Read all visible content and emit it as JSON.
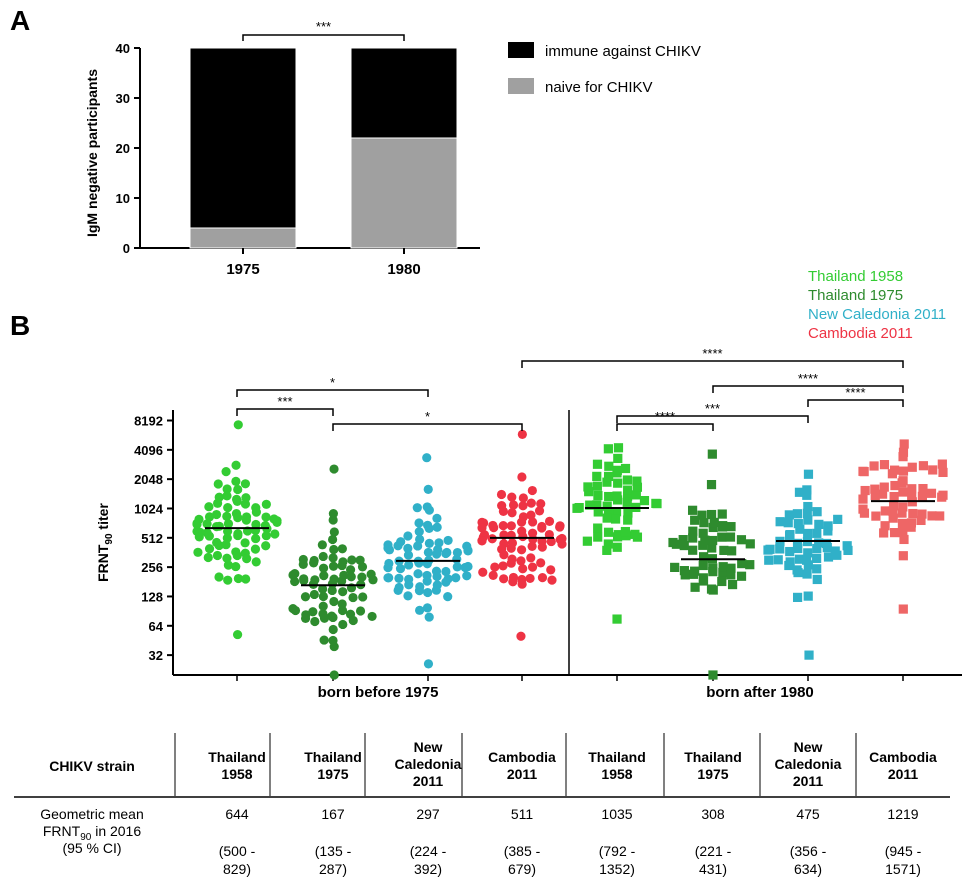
{
  "panel_a": {
    "letter": "A",
    "chart_data": {
      "type": "bar",
      "stacked": true,
      "categories": [
        "1975",
        "1980"
      ],
      "series": [
        {
          "name": "naive for CHIKV",
          "color": "#a0a0a0",
          "values": [
            4,
            22
          ]
        },
        {
          "name": "immune against CHIKV",
          "color": "#000000",
          "values": [
            36,
            18
          ]
        }
      ],
      "ylabel": "IgM negative participants",
      "ylim": [
        0,
        40
      ],
      "yticks": [
        0,
        10,
        20,
        30,
        40
      ],
      "legend_placement": "right",
      "legend": [
        {
          "label": "immune against CHIKV",
          "color": "#000000"
        },
        {
          "label": "naive for CHIKV",
          "color": "#a0a0a0"
        }
      ],
      "annotations": [
        {
          "between": [
            "1975",
            "1980"
          ],
          "text": "***"
        }
      ]
    }
  },
  "panel_b": {
    "letter": "B",
    "chart_data": {
      "type": "scatter",
      "ylabel": "FRNT",
      "ylabel_sub": "90",
      "ylabel_suffix": " titer",
      "yscale": "log2",
      "ylim": [
        20,
        10500
      ],
      "yticks": [
        32,
        64,
        128,
        256,
        512,
        1024,
        2048,
        4096,
        8192
      ],
      "groups": [
        "born before 1975",
        "born after 1980"
      ],
      "legend_placement": "top-right",
      "legend": [
        {
          "label": "Thailand 1958",
          "color": "#33cc33"
        },
        {
          "label": "Thailand 1975",
          "color": "#2e8b2e"
        },
        {
          "label": "New Caledonia 2011",
          "color": "#30b0c8"
        },
        {
          "label": "Cambodia 2011",
          "color": "#ee3344"
        }
      ],
      "series": [
        {
          "name": "Thailand 1958",
          "group": "born before 1975",
          "marker": "circle",
          "color": "#33cc33",
          "geomean": 644,
          "n": 78,
          "min": 52,
          "max": 7400
        },
        {
          "name": "Thailand 1975",
          "group": "born before 1975",
          "marker": "circle",
          "color": "#2e8b2e",
          "geomean": 167,
          "n": 72,
          "min": 20,
          "max": 2600
        },
        {
          "name": "New Caledonia 2011",
          "group": "born before 1975",
          "marker": "circle",
          "color": "#30b0c8",
          "geomean": 297,
          "n": 74,
          "min": 26,
          "max": 3400
        },
        {
          "name": "Cambodia 2011",
          "group": "born before 1975",
          "marker": "circle",
          "color": "#ee3344",
          "geomean": 511,
          "n": 76,
          "min": 50,
          "max": 5900
        },
        {
          "name": "Thailand 1958",
          "group": "born after 1980",
          "marker": "square",
          "color": "#33cc33",
          "geomean": 1035,
          "n": 56,
          "min": 75,
          "max": 4300
        },
        {
          "name": "Thailand 1975",
          "group": "born after 1980",
          "marker": "square",
          "color": "#2e8b2e",
          "geomean": 308,
          "n": 56,
          "min": 20,
          "max": 3700
        },
        {
          "name": "New Caledonia 2011",
          "group": "born after 1980",
          "marker": "square",
          "color": "#30b0c8",
          "geomean": 475,
          "n": 56,
          "min": 32,
          "max": 2300
        },
        {
          "name": "Cambodia 2011",
          "group": "born after 1980",
          "marker": "square",
          "color": "#ee6666",
          "geomean": 1219,
          "n": 58,
          "min": 95,
          "max": 4700
        }
      ],
      "significance": [
        {
          "from": 0,
          "to": 1,
          "text": "***"
        },
        {
          "from": 0,
          "to": 2,
          "text": "*"
        },
        {
          "from": 1,
          "to": 3,
          "text": "*"
        },
        {
          "from": 4,
          "to": 5,
          "text": "****"
        },
        {
          "from": 4,
          "to": 6,
          "text": "***"
        },
        {
          "from": 6,
          "to": 7,
          "text": "****"
        },
        {
          "from": 5,
          "to": 7,
          "text": "****"
        },
        {
          "from": 3,
          "to": 7,
          "text": "****"
        }
      ]
    }
  },
  "table": {
    "row_header": "CHIKV strain",
    "columns": [
      [
        "Thailand",
        "1958"
      ],
      [
        "Thailand",
        "1975"
      ],
      [
        "New",
        "Caledonia",
        "2011"
      ],
      [
        "Cambodia",
        "2011"
      ],
      [
        "Thailand",
        "1958"
      ],
      [
        "Thailand",
        "1975"
      ],
      [
        "New",
        "Caledonia",
        "2011"
      ],
      [
        "Cambodia",
        "2011"
      ]
    ],
    "row_label_1": "Geometric mean",
    "row_label_2a": "FRNT",
    "row_label_2sub": "90",
    "row_label_2b": "  in 2016",
    "row_label_3": "(95 % CI)",
    "values": [
      "644",
      "167",
      "297",
      "511",
      "1035",
      "308",
      "475",
      "1219"
    ],
    "ci_low": [
      "(500 -",
      "(135 -",
      "(224 -",
      "(385 -",
      "(792 -",
      "(221 -",
      "(356 -",
      "(945 -"
    ],
    "ci_high": [
      "829)",
      "287)",
      "392)",
      "679)",
      "1352)",
      "431)",
      "634)",
      "1571)"
    ]
  }
}
